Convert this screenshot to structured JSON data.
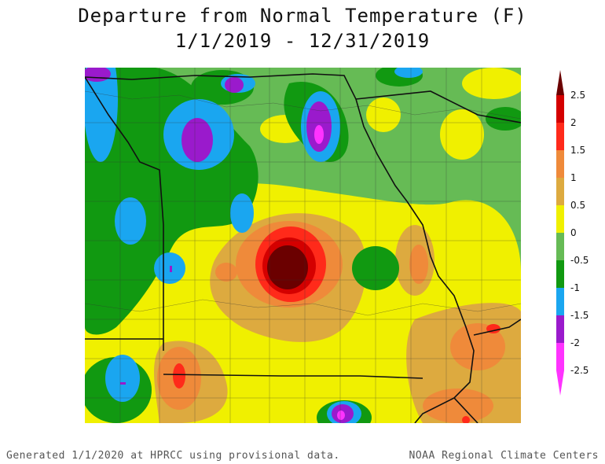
{
  "title": {
    "line1": "Departure from Normal Temperature (F)",
    "line2": "1/1/2019 - 12/31/2019"
  },
  "legend": {
    "units": "F",
    "bins": [
      {
        "label": "2.5",
        "color": "#6b0000"
      },
      {
        "label": "2",
        "color": "#d40000"
      },
      {
        "label": "1.5",
        "color": "#ff2a1a"
      },
      {
        "label": "1",
        "color": "#ef8a3a"
      },
      {
        "label": "0.5",
        "color": "#ddaa3f"
      },
      {
        "label": "0",
        "color": "#f0f000"
      },
      {
        "label": "-0.5",
        "color": "#66bb55"
      },
      {
        "label": "-1",
        "color": "#119911"
      },
      {
        "label": "-1.5",
        "color": "#1aa6f0"
      },
      {
        "label": "-2",
        "color": "#9a1acc"
      },
      {
        "label": "-2.5",
        "color": "#ff33ff"
      }
    ]
  },
  "footer": {
    "left": "Generated 1/1/2020 at HPRCC using provisional data.",
    "right": "NOAA Regional Climate Centers"
  }
}
